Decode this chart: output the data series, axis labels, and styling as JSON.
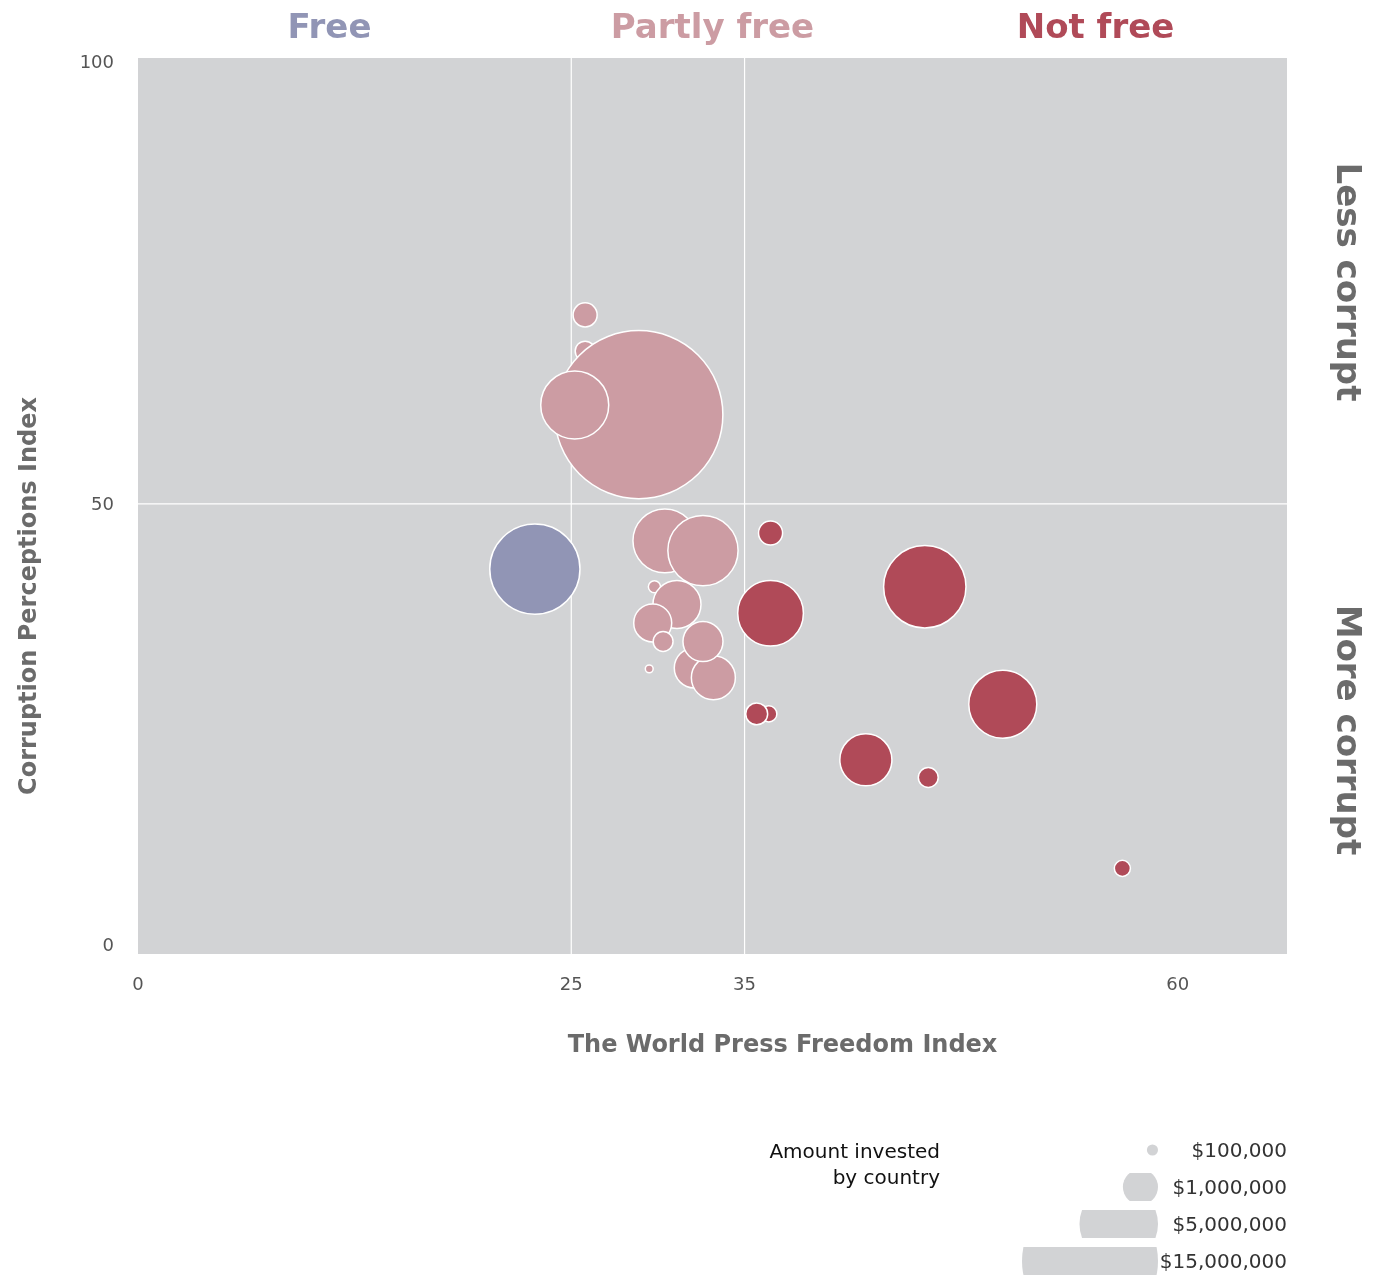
{
  "chart_data": {
    "type": "bubble",
    "xlabel": "The World Press Freedom Index",
    "ylabel": "Corruption Perceptions Index",
    "xlim": [
      0,
      66.3
    ],
    "ylim": [
      -1,
      100.5
    ],
    "xticks": [
      0,
      25,
      35,
      60
    ],
    "yticks": [
      0,
      50,
      100
    ],
    "grid": false,
    "legend": "top",
    "legend_title": "Amount invested by country",
    "size_legend": [
      {
        "value": 100000,
        "label": "$100,000"
      },
      {
        "value": 1000000,
        "label": "$1,000,000"
      },
      {
        "value": 5000000,
        "label": "$5,000,000"
      },
      {
        "value": 15000000,
        "label": "$15,000,000"
      }
    ],
    "ref_lines": [
      {
        "axis": "x",
        "value": 25,
        "color": "#ffffff"
      },
      {
        "axis": "x",
        "value": 35,
        "color": "#ffffff"
      },
      {
        "axis": "y",
        "value": 50,
        "color": "#ffffff"
      }
    ],
    "annotations": [
      "Less corrupt",
      "More corrupt"
    ],
    "series": [
      {
        "name": "Free",
        "color": "#9195b5",
        "x": [
          22.9
        ],
        "values": [
          42.6
        ],
        "sizes": [
          6600000
        ]
      },
      {
        "name": "Partly free",
        "color": "#cc9ca3",
        "x": [
          25.8,
          25.8,
          28.9,
          25.2,
          30.4,
          32.6,
          29.8,
          31.1,
          29.7,
          30.3,
          32.1,
          33.2,
          32.6,
          29.5
        ],
        "values": [
          71.4,
          67.3,
          60.1,
          61.2,
          45.8,
          44.7,
          40.6,
          38.6,
          36.5,
          34.4,
          31.4,
          30.3,
          34.4,
          31.3
        ],
        "sizes": [
          470000,
          320000,
          22900000,
          3750000,
          3300000,
          4000000,
          120000,
          1870000,
          1170000,
          320000,
          1300000,
          1570000,
          1300000,
          50000
        ]
      },
      {
        "name": "Not free",
        "color": "#b04a58",
        "x": [
          36.5,
          36.5,
          45.4,
          49.9,
          36.4,
          35.7,
          42.0,
          45.6,
          56.8
        ],
        "values": [
          46.7,
          37.6,
          40.6,
          27.3,
          26.2,
          26.2,
          21.0,
          19.0,
          8.7
        ],
        "sizes": [
          470000,
          3500000,
          5500000,
          3750000,
          210000,
          390000,
          2200000,
          320000,
          210000
        ]
      }
    ]
  }
}
